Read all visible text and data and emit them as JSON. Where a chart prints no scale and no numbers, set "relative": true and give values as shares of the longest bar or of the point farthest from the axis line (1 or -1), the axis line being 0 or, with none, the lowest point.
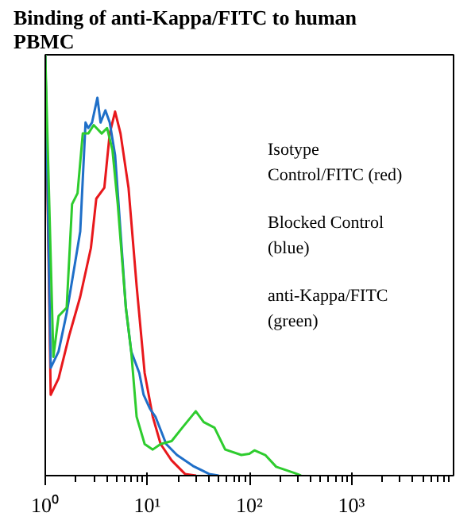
{
  "chart_data": {
    "type": "line",
    "title": "Binding of anti-Kappa/FITC to human PBMC",
    "relative": true,
    "grid": false,
    "marker": "none",
    "line_style": "solid",
    "log": "x",
    "xlim": [
      1,
      10000
    ],
    "xticks": [
      {
        "value": 1,
        "label": "10⁰"
      },
      {
        "value": 10,
        "label": "10¹"
      },
      {
        "value": 100,
        "label": "10²"
      },
      {
        "value": 1000,
        "label": "10³"
      }
    ],
    "annotations": [
      "Isotype Control/FITC (red)",
      "Blocked Control (blue)",
      "anti-Kappa/FITC (green)"
    ],
    "series": [
      {
        "color": "#e8181c",
        "x": [
          1,
          1.13,
          1.35,
          1.72,
          2.2,
          2.8,
          3.16,
          3.79,
          4.28,
          4.83,
          5.46,
          6.54,
          7.85,
          9.41,
          11.3,
          13.5,
          17.3,
          23.4,
          30
        ],
        "values": [
          1,
          0.192,
          0.231,
          0.334,
          0.425,
          0.541,
          0.658,
          0.684,
          0.813,
          0.865,
          0.813,
          0.684,
          0.451,
          0.244,
          0.14,
          0.075,
          0.036,
          0.004,
          0
        ]
      },
      {
        "color": "#1f6fc8",
        "x": [
          1,
          1.13,
          1.35,
          1.62,
          1.95,
          2.2,
          2.48,
          2.64,
          2.87,
          3.24,
          3.48,
          3.88,
          4.28,
          4.83,
          5.46,
          6.16,
          6.95,
          8.34,
          9.19,
          10.6,
          12,
          15.3,
          19.5,
          28,
          40.3,
          50
        ],
        "values": [
          1,
          0.256,
          0.295,
          0.386,
          0.503,
          0.58,
          0.839,
          0.826,
          0.839,
          0.898,
          0.839,
          0.868,
          0.839,
          0.762,
          0.58,
          0.399,
          0.295,
          0.244,
          0.192,
          0.159,
          0.14,
          0.075,
          0.049,
          0.023,
          0.004,
          0
        ]
      },
      {
        "color": "#2ecc2e",
        "x": [
          1,
          1.2,
          1.35,
          1.62,
          1.83,
          2.07,
          2.33,
          2.64,
          2.98,
          3.57,
          4.03,
          4.55,
          5.13,
          6.16,
          6.95,
          7.85,
          9.41,
          11.3,
          13.5,
          17.3,
          22,
          29.8,
          35.7,
          45.5,
          57.9,
          83.4,
          99.8,
          112,
          143,
          183,
          279,
          320
        ],
        "values": [
          1,
          0.282,
          0.379,
          0.399,
          0.645,
          0.671,
          0.813,
          0.813,
          0.833,
          0.813,
          0.826,
          0.774,
          0.645,
          0.399,
          0.295,
          0.14,
          0.075,
          0.062,
          0.075,
          0.082,
          0.114,
          0.153,
          0.127,
          0.114,
          0.062,
          0.049,
          0.052,
          0.06,
          0.049,
          0.021,
          0.006,
          0
        ]
      }
    ]
  }
}
